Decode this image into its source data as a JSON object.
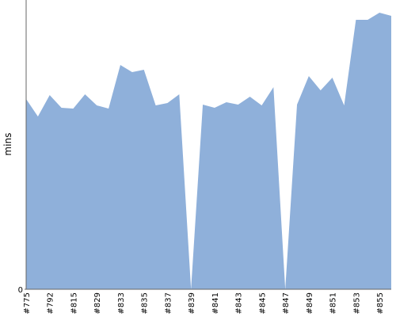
{
  "chart_data": {
    "type": "area",
    "y_label": "mins",
    "categories": [
      "#775",
      null,
      "#792",
      null,
      "#815",
      null,
      "#829",
      null,
      "#833",
      null,
      "#835",
      null,
      "#837",
      null,
      "#839",
      null,
      "#841",
      null,
      "#843",
      null,
      "#845",
      null,
      "#847",
      null,
      "#849",
      null,
      "#851",
      null,
      "#853",
      null,
      "#855",
      null
    ],
    "values": [
      24,
      21.8,
      24.5,
      22.9,
      22.8,
      24.6,
      23.2,
      22.8,
      28.3,
      27.4,
      27.7,
      23.2,
      23.5,
      24.6,
      0,
      23.3,
      22.9,
      23.6,
      23.3,
      24.3,
      23.2,
      25.5,
      0,
      23.3,
      26.9,
      25.1,
      26.7,
      23.2,
      34,
      34,
      34.9,
      34.5
    ],
    "color": "#8fb0da",
    "ylim": [
      0,
      36.5
    ],
    "yticks": [
      0
    ]
  }
}
